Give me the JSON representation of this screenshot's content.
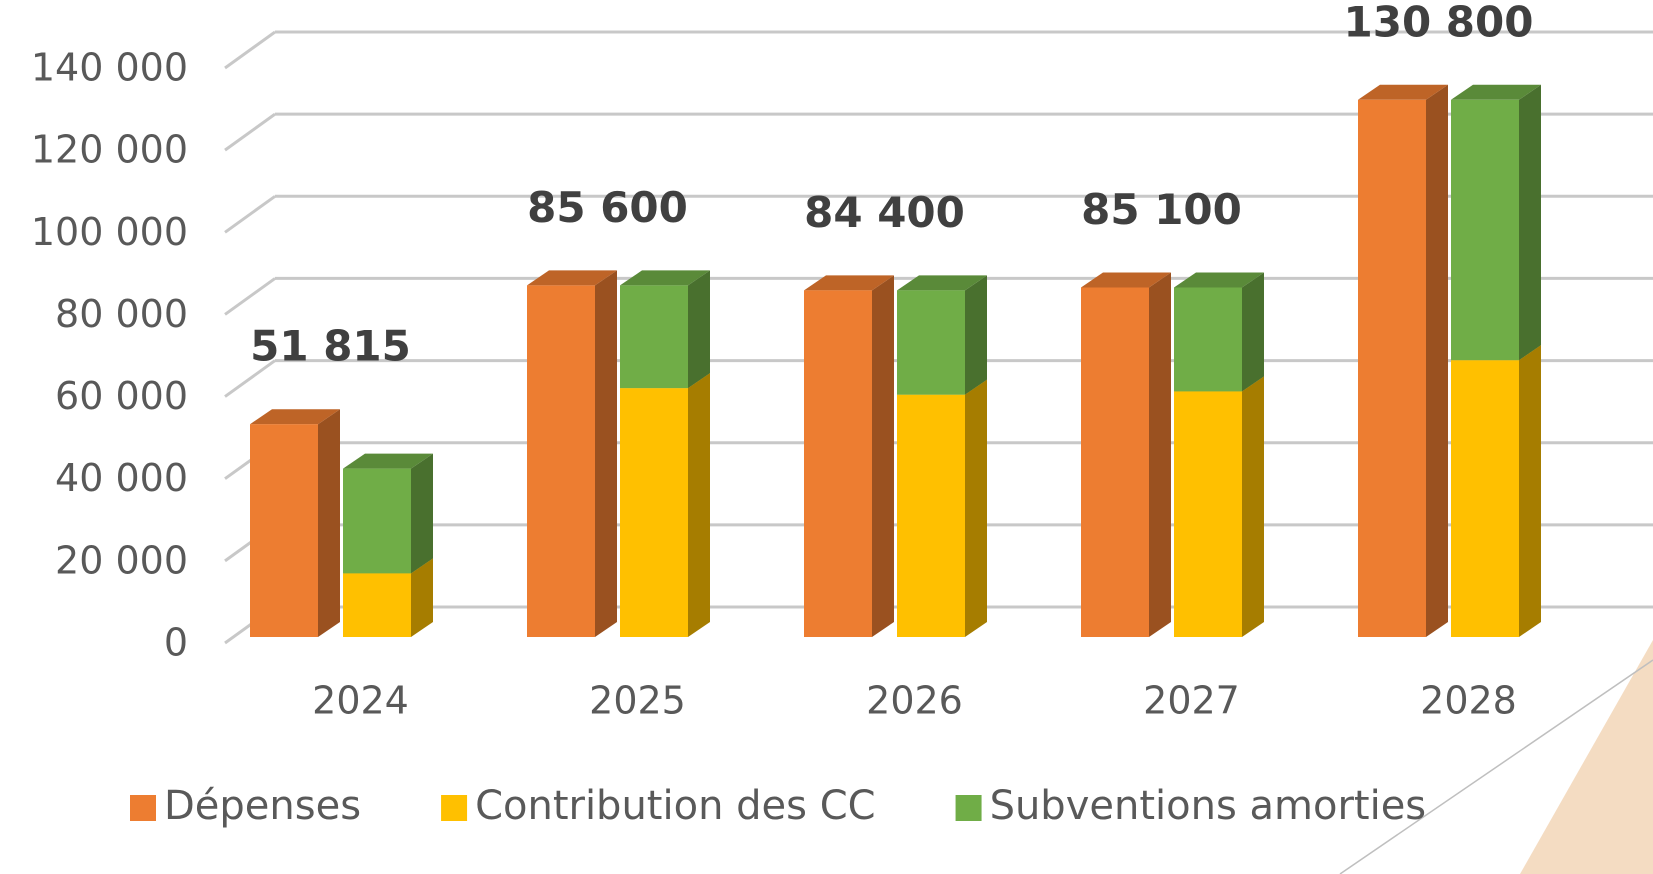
{
  "chart_data": {
    "type": "bar3d",
    "categories": [
      "2024",
      "2025",
      "2026",
      "2027",
      "2028"
    ],
    "series": [
      {
        "name": "Dépenses",
        "color": "#ED7D31",
        "values": [
          51815,
          85600,
          84400,
          85100,
          130800
        ],
        "value_labels": [
          "51 815",
          "85 600",
          "84 400",
          "85 100",
          "130 800"
        ]
      },
      {
        "name": "Contribution des CC",
        "color": "#FFC000",
        "values": [
          15500,
          60600,
          59000,
          59800,
          67400
        ]
      },
      {
        "name": "Subventions amorties",
        "color": "#70AD47",
        "values": [
          25500,
          25000,
          25400,
          25300,
          63400
        ]
      }
    ],
    "ylim": [
      0,
      140000
    ],
    "yticks": [
      {
        "value": 0,
        "label": "0"
      },
      {
        "value": 20000,
        "label": "20 000"
      },
      {
        "value": 40000,
        "label": "40 000"
      },
      {
        "value": 60000,
        "label": "60 000"
      },
      {
        "value": 80000,
        "label": "80 000"
      },
      {
        "value": 100000,
        "label": "100 000"
      },
      {
        "value": 120000,
        "label": "120 000"
      },
      {
        "value": 140000,
        "label": "140 000"
      }
    ],
    "grid": true,
    "legend": "bottom"
  }
}
